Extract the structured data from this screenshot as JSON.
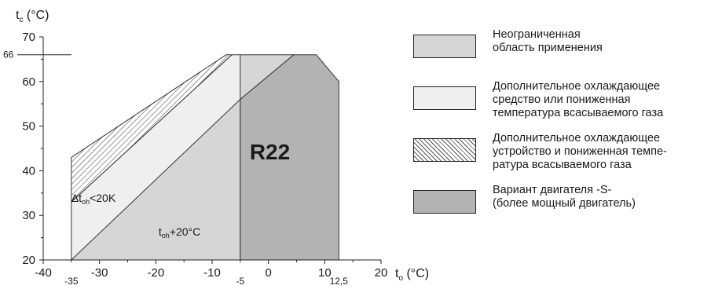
{
  "chart_data": {
    "type": "area",
    "title": "R22",
    "ylabel": "t",
    "ylabel_subscript": "c",
    "ylabel_unit": "(°C)",
    "xlabel": "t",
    "xlabel_subscript": "o",
    "xlabel_unit": "(°C)",
    "xlim": [
      -40,
      20
    ],
    "ylim": [
      20,
      70
    ],
    "x_ticks": [
      -40,
      -30,
      -20,
      -10,
      0,
      10,
      20
    ],
    "y_ticks": [
      20,
      30,
      40,
      50,
      60,
      70
    ],
    "extra_x_labels": [
      {
        "value": -35,
        "label": "-35"
      },
      {
        "value": -5,
        "label": "-5"
      },
      {
        "value": 12.5,
        "label": "12,5"
      }
    ],
    "extra_y_labels": [
      {
        "value": 66,
        "label": "66"
      }
    ],
    "annotations": [
      {
        "prefix": "Δt",
        "sub": "oh",
        "suffix": "<20K",
        "x": -35,
        "y": 33
      },
      {
        "prefix": "t",
        "sub": "oh",
        "suffix": "+20°C",
        "x": -19.5,
        "y": 25.5
      }
    ],
    "regions": [
      {
        "name": "unlimited",
        "fill": "#d6d6d6",
        "pattern": "none",
        "polygon": [
          [
            -35,
            20
          ],
          [
            -5,
            20
          ],
          [
            -5,
            56
          ],
          [
            4.5,
            66
          ],
          [
            -5,
            66
          ]
        ]
      },
      {
        "name": "extra_cooling",
        "fill": "#efefef",
        "pattern": "none",
        "polygon": [
          [
            -35,
            20
          ],
          [
            -35,
            33
          ],
          [
            -6.5,
            66
          ],
          [
            -5,
            66
          ],
          [
            -5,
            56
          ]
        ]
      },
      {
        "name": "extra_cooling_hatched",
        "fill": "#ffffff",
        "pattern": "hatch",
        "polygon": [
          [
            -35,
            33
          ],
          [
            -35,
            43
          ],
          [
            -7.5,
            66
          ],
          [
            -6.5,
            66
          ]
        ]
      },
      {
        "name": "motor_s",
        "fill": "#b3b3b3",
        "pattern": "none",
        "polygon": [
          [
            -5,
            20
          ],
          [
            12.5,
            20
          ],
          [
            12.5,
            60
          ],
          [
            8.5,
            66
          ],
          [
            4.5,
            66
          ],
          [
            -5,
            56
          ]
        ]
      }
    ],
    "legend": [
      {
        "text": "Неограниченная\nобласть применения",
        "fill": "#d6d6d6",
        "pattern": "none"
      },
      {
        "text": "Дополнительное охлаждающее\nсредство или пониженная\nтемпература всасываемого газа",
        "fill": "#efefef",
        "pattern": "none"
      },
      {
        "text": "Дополнительное охлаждающее\nустройство и пониженная темпе-\nратура всасываемого газа",
        "fill": "#ffffff",
        "pattern": "hatch"
      },
      {
        "text": "Вариант двигателя -S-\n(более мощный двигатель)",
        "fill": "#b3b3b3",
        "pattern": "none"
      }
    ],
    "legend_position": "right",
    "grid": false
  }
}
